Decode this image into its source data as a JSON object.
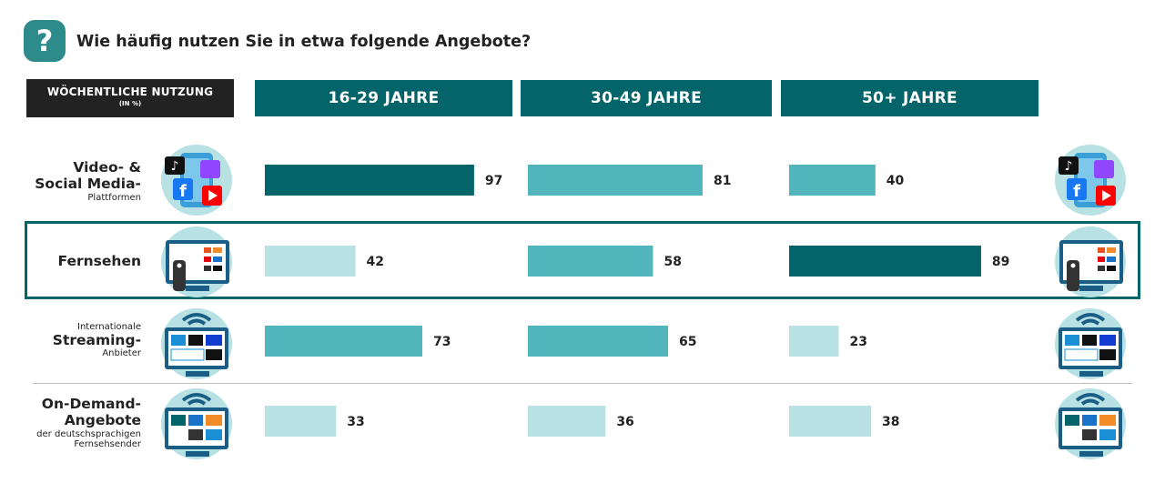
{
  "header": {
    "question_icon": "?",
    "question": "Wie häufig nutzen Sie in etwa folgende Angebote?",
    "label_line1": "WÖCHENTLICHE NUTZUNG",
    "label_line2": "(IN %)"
  },
  "rows": [
    {
      "title": "Video- &",
      "title2": "Social Media-",
      "sub": "Plattformen",
      "icon": "social-media-phone-icon"
    },
    {
      "title": "Fernsehen",
      "icon": "tv-remote-icon"
    },
    {
      "pre": "Internationale",
      "title": "Streaming-",
      "sub": "Anbieter",
      "icon": "streaming-tv-icon"
    },
    {
      "title": "On-Demand-",
      "title2": "Angebote",
      "sub": "der deutschsprachigen",
      "sub2": "Fernsehsender",
      "icon": "on-demand-tv-icon"
    }
  ],
  "colors": {
    "dark": "#036569",
    "mid": "#52b5bb",
    "light": "#b8e1e3",
    "header": "#036569",
    "labelbox": "#222222"
  },
  "chart_data": {
    "type": "bar",
    "orientation": "horizontal",
    "title": "Wie häufig nutzen Sie in etwa folgende Angebote?",
    "unit": "%",
    "categories": [
      "Video- & Social Media-Plattformen",
      "Fernsehen",
      "Internationale Streaming-Anbieter",
      "On-Demand-Angebote der deutschsprachigen Fernsehsender"
    ],
    "series": [
      {
        "name": "16-29 JAHRE",
        "values": [
          97,
          42,
          73,
          33
        ],
        "shades": [
          "dark",
          "light",
          "mid",
          "light"
        ]
      },
      {
        "name": "30-49 JAHRE",
        "values": [
          81,
          58,
          65,
          36
        ],
        "shades": [
          "mid",
          "mid",
          "mid",
          "light"
        ]
      },
      {
        "name": "50+ JAHRE",
        "values": [
          40,
          89,
          23,
          38
        ],
        "shades": [
          "mid",
          "dark",
          "light",
          "light"
        ]
      }
    ],
    "xlim": [
      0,
      100
    ],
    "grid": false
  }
}
